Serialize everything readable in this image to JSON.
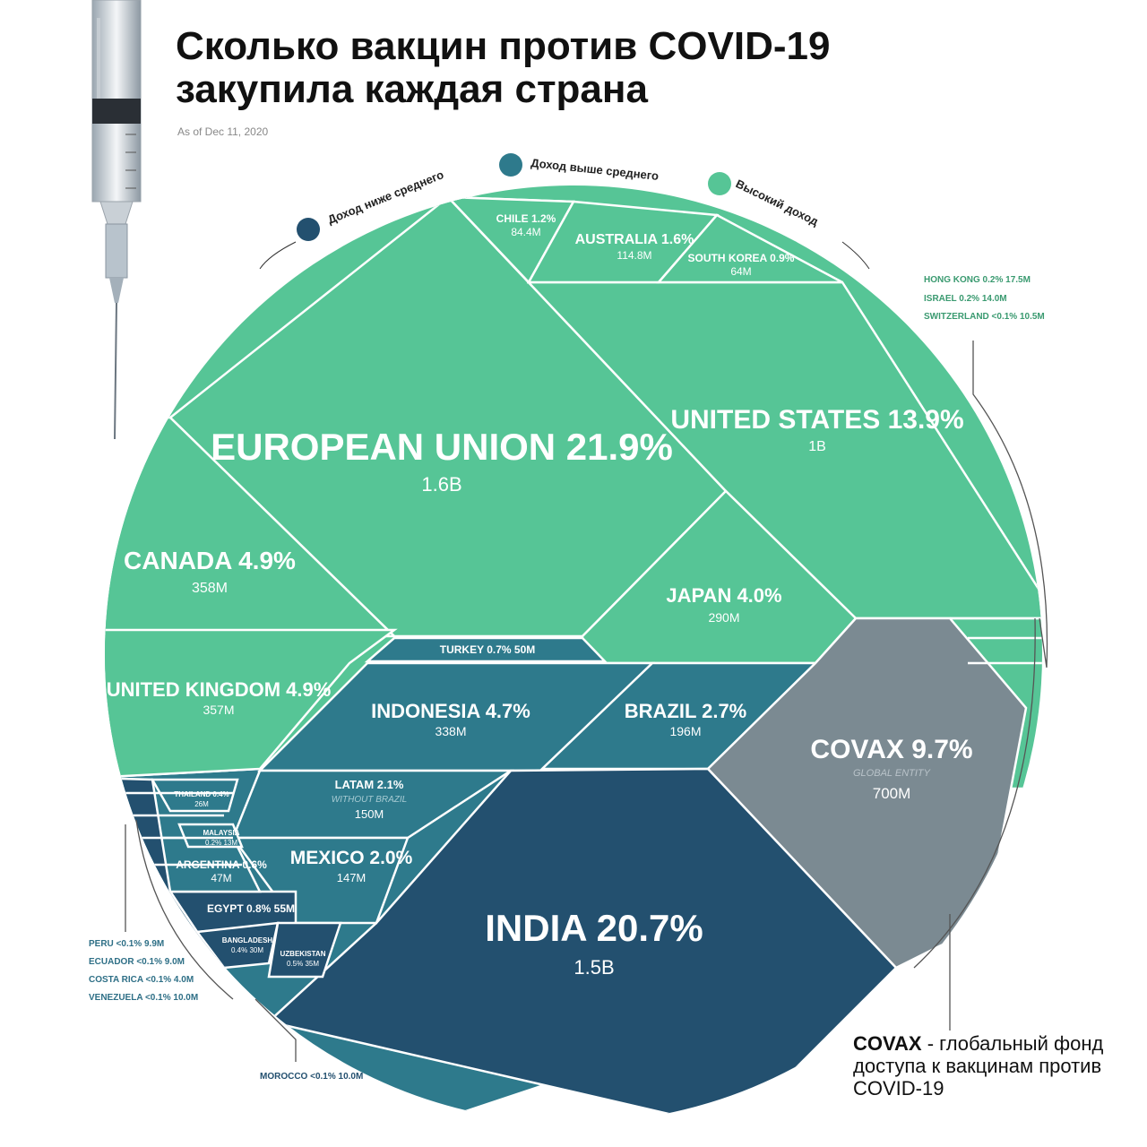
{
  "title_line1": "Сколько вакцин против COVID-19",
  "title_line2": "закупила каждая страна",
  "as_of": "As of Dec 11, 2020",
  "income_groups": [
    {
      "label": "Доход ниже среднего",
      "color": "#23506f"
    },
    {
      "label": "Доход выше среднего",
      "color": "#2e7a8c"
    },
    {
      "label": "Высокий доход",
      "color": "#56c596"
    }
  ],
  "covax_note": {
    "bold": "COVAX",
    "text": " - глобальный фонд доступа к вакцинам против COVID-19"
  },
  "colors": {
    "high": "#56c596",
    "upper": "#2e7a8c",
    "lower": "#23506f",
    "global": "#7b8a92"
  },
  "chart_data": {
    "type": "treemap",
    "title": "Сколько вакцин против COVID-19 закупила каждая страна",
    "items": [
      {
        "name": "EUROPEAN UNION",
        "pct": "21.9%",
        "doses": "1.6B",
        "group": "high"
      },
      {
        "name": "INDIA",
        "pct": "20.7%",
        "doses": "1.5B",
        "group": "lower"
      },
      {
        "name": "UNITED STATES",
        "pct": "13.9%",
        "doses": "1B",
        "group": "high"
      },
      {
        "name": "COVAX",
        "pct": "9.7%",
        "doses": "700M",
        "group": "global",
        "note": "GLOBAL ENTITY"
      },
      {
        "name": "CANADA",
        "pct": "4.9%",
        "doses": "358M",
        "group": "high"
      },
      {
        "name": "UNITED KINGDOM",
        "pct": "4.9%",
        "doses": "357M",
        "group": "high"
      },
      {
        "name": "INDONESIA",
        "pct": "4.7%",
        "doses": "338M",
        "group": "lower"
      },
      {
        "name": "JAPAN",
        "pct": "4.0%",
        "doses": "290M",
        "group": "high"
      },
      {
        "name": "BRAZIL",
        "pct": "2.7%",
        "doses": "196M",
        "group": "upper"
      },
      {
        "name": "LATAM",
        "pct": "2.1%",
        "doses": "150M",
        "group": "upper",
        "note": "WITHOUT BRAZIL"
      },
      {
        "name": "MEXICO",
        "pct": "2.0%",
        "doses": "147M",
        "group": "upper"
      },
      {
        "name": "AUSTRALIA",
        "pct": "1.6%",
        "doses": "114.8M",
        "group": "high"
      },
      {
        "name": "CHILE",
        "pct": "1.2%",
        "doses": "84.4M",
        "group": "high"
      },
      {
        "name": "SOUTH KOREA",
        "pct": "0.9%",
        "doses": "64M",
        "group": "high"
      },
      {
        "name": "EGYPT",
        "pct": "0.8%",
        "doses": "55M",
        "group": "lower"
      },
      {
        "name": "TURKEY",
        "pct": "0.7%",
        "doses": "50M",
        "group": "upper"
      },
      {
        "name": "ARGENTINA",
        "pct": "0.6%",
        "doses": "47M",
        "group": "upper"
      },
      {
        "name": "UZBEKISTAN",
        "pct": "0.5%",
        "doses": "35M",
        "group": "lower"
      },
      {
        "name": "THAILAND",
        "pct": "0.4%",
        "doses": "26M",
        "group": "upper"
      },
      {
        "name": "BANGLADESH",
        "pct": "0.4%",
        "doses": "30M",
        "group": "lower"
      },
      {
        "name": "MALAYSIA",
        "pct": "0.2%",
        "doses": "13M",
        "group": "upper"
      },
      {
        "name": "HONG KONG",
        "pct": "0.2%",
        "doses": "17.5M",
        "group": "high"
      },
      {
        "name": "ISRAEL",
        "pct": "0.2%",
        "doses": "14.0M",
        "group": "high"
      },
      {
        "name": "SWITZERLAND",
        "pct": "<0.1%",
        "doses": "10.5M",
        "group": "high"
      },
      {
        "name": "PERU",
        "pct": "<0.1%",
        "doses": "9.9M",
        "group": "upper"
      },
      {
        "name": "ECUADOR",
        "pct": "<0.1%",
        "doses": "9.0M",
        "group": "upper"
      },
      {
        "name": "COSTA RICA",
        "pct": "<0.1%",
        "doses": "4.0M",
        "group": "upper"
      },
      {
        "name": "VENEZUELA",
        "pct": "<0.1%",
        "doses": "10.0M",
        "group": "upper"
      },
      {
        "name": "MOROCCO",
        "pct": "<0.1%",
        "doses": "10.0M",
        "group": "lower"
      }
    ]
  }
}
